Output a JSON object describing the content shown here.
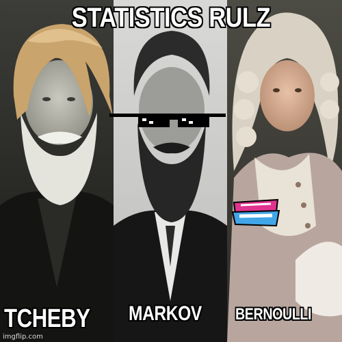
{
  "meme": {
    "top_caption": "STATISTICS RULZ",
    "panels": [
      {
        "name": "TCHEBY",
        "depicts": "portrait-bearded-man-with-wig"
      },
      {
        "name": "MARKOV",
        "depicts": "portrait-bearded-man-with-sunglasses"
      },
      {
        "name": "BERNOULLI",
        "depicts": "portrait-man-with-powdered-wig"
      }
    ],
    "overlay_logo": "Friday Night Funkin'",
    "watermark": "imgflip.com"
  },
  "colors": {
    "caption_text": "#ffffff",
    "caption_outline": "#000000",
    "panel_3_bg": "#4a4a42",
    "logo_pink": "#e0338f",
    "logo_blue": "#41a6e8"
  }
}
